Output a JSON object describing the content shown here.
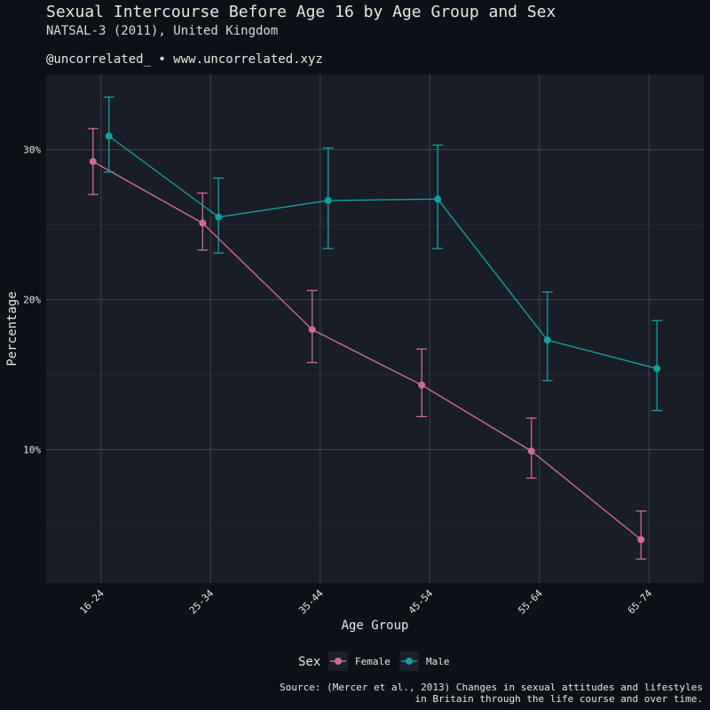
{
  "header": {
    "title": "Sexual Intercourse Before Age 16 by Age Group and Sex",
    "subtitle": "NATSAL-3 (2011), United Kingdom",
    "credit": "@uncorrelated_ • www.uncorrelated.xyz"
  },
  "caption": {
    "line1": "Source: (Mercer et al., 2013) Changes in sexual attitudes and lifestyles",
    "line2": "in Britain through the life course and over time."
  },
  "colors": {
    "page_background": "#0d1117",
    "panel_background": "#181d26",
    "grid": "#3b3f47",
    "female": "#d06b93",
    "male": "#12a1a0",
    "text": "#e6e6e6"
  },
  "chart_data": {
    "type": "line",
    "xlabel": "Age Group",
    "ylabel": "Percentage",
    "categories": [
      "16-24",
      "25-34",
      "35-44",
      "45-54",
      "55-64",
      "65-74"
    ],
    "yticks": [
      10,
      20,
      30
    ],
    "ytick_labels": [
      "10%",
      "20%",
      "30%"
    ],
    "ylim": [
      1.1,
      35.0
    ],
    "grid": true,
    "legend_title": "Sex",
    "legend_position": "bottom",
    "series": [
      {
        "name": "Female",
        "color": "#d06b93",
        "values": [
          29.2,
          25.1,
          18.0,
          14.3,
          9.9,
          4.0
        ],
        "lower": [
          27.0,
          23.3,
          15.8,
          12.2,
          8.1,
          2.7
        ],
        "upper": [
          31.4,
          27.1,
          20.6,
          16.7,
          12.1,
          5.9
        ]
      },
      {
        "name": "Male",
        "color": "#12a1a0",
        "values": [
          30.9,
          25.5,
          26.6,
          26.7,
          17.3,
          15.4
        ],
        "lower": [
          28.5,
          23.1,
          23.4,
          23.4,
          14.6,
          12.6
        ],
        "upper": [
          33.5,
          28.1,
          30.1,
          30.3,
          20.5,
          18.6
        ]
      }
    ]
  }
}
